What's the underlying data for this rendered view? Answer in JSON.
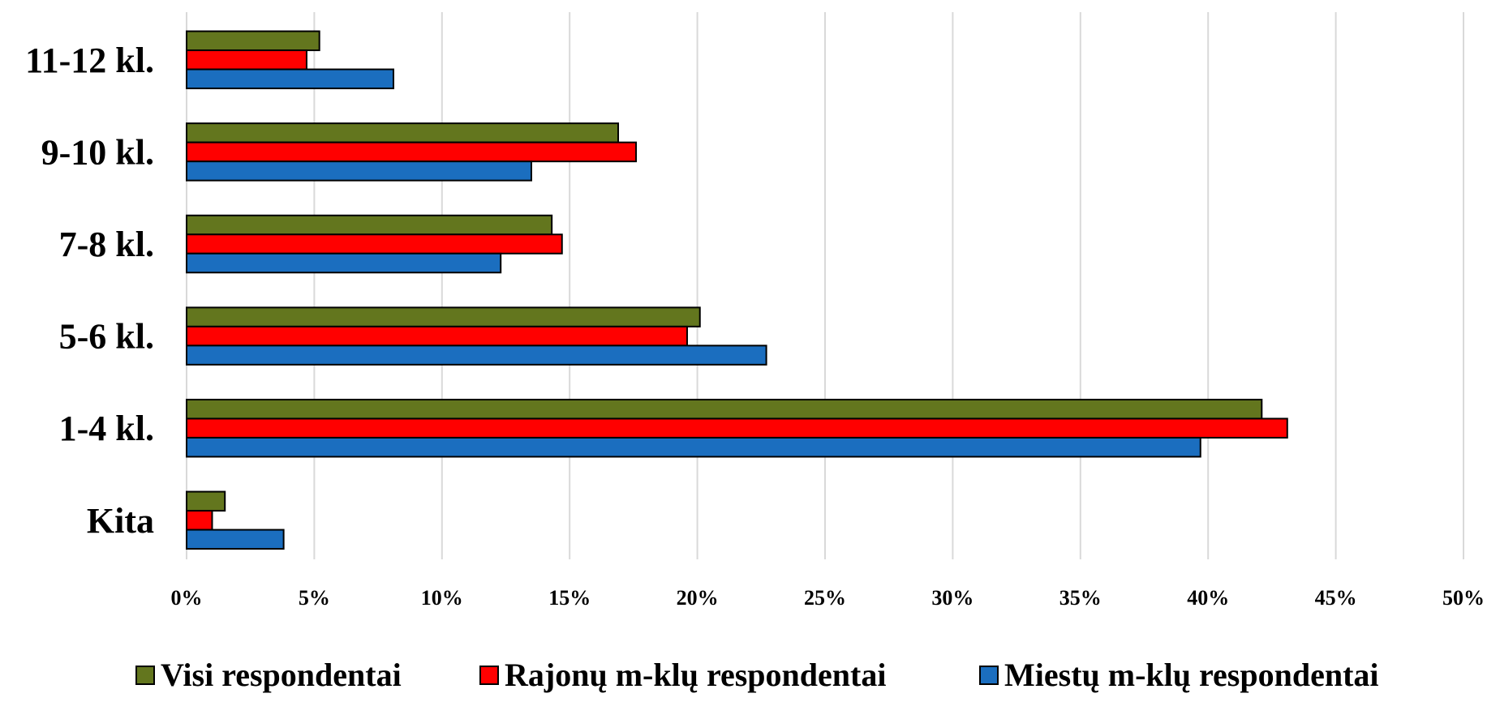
{
  "chart_data": {
    "type": "bar",
    "orientation": "horizontal",
    "categories": [
      "11-12 kl.",
      "9-10 kl.",
      "7-8 kl.",
      "5-6 kl.",
      "1-4 kl.",
      "Kita"
    ],
    "series": [
      {
        "name": "Visi respondentai",
        "color": "#63761e",
        "values": [
          5.2,
          16.9,
          14.3,
          20.1,
          42.1,
          1.5
        ]
      },
      {
        "name": "Rajonų  m-klų respondentai",
        "color": "#ff0000",
        "values": [
          4.7,
          17.6,
          14.7,
          19.6,
          43.1,
          1.0
        ]
      },
      {
        "name": "Miestų m-klų respondentai",
        "color": "#1b6ebf",
        "values": [
          8.1,
          13.5,
          12.3,
          22.7,
          39.7,
          3.8
        ]
      }
    ],
    "xlim": [
      0,
      50
    ],
    "x_ticks": [
      "0%",
      "5%",
      "10%",
      "15%",
      "20%",
      "25%",
      "30%",
      "35%",
      "40%",
      "45%",
      "50%"
    ],
    "grid": true,
    "legend_position": "bottom",
    "title": "",
    "xlabel": "",
    "ylabel": ""
  }
}
